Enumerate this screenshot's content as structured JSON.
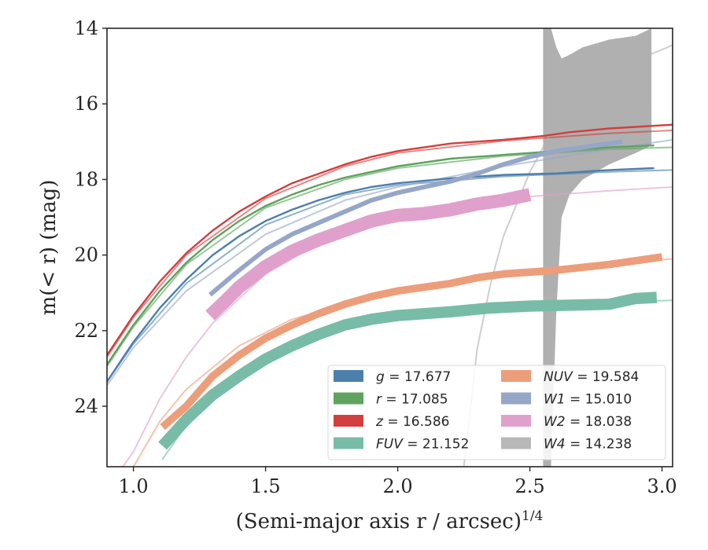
{
  "chart_data": {
    "type": "line",
    "xlabel": "(Semi-major axis r / arcsec)",
    "xlabel_sup": "1/4",
    "ylabel": "m(< r) (mag)",
    "xlim": [
      0.9,
      3.04
    ],
    "ylim": [
      25.6,
      14.0
    ],
    "y_inverted": true,
    "grid": false,
    "legend_placement": "lower-right",
    "x_ticks": [
      "1.0",
      "1.5",
      "2.0",
      "2.5",
      "3.0"
    ],
    "y_ticks": [
      "14",
      "16",
      "18",
      "20",
      "22",
      "24"
    ],
    "series": [
      {
        "name": "g = 17.677",
        "color": "#4c7fab",
        "data": [
          [
            0.9,
            23.35
          ],
          [
            1.0,
            22.3
          ],
          [
            1.1,
            21.4
          ],
          [
            1.2,
            20.65
          ],
          [
            1.3,
            20.0
          ],
          [
            1.4,
            19.5
          ],
          [
            1.5,
            19.1
          ],
          [
            1.6,
            18.8
          ],
          [
            1.7,
            18.55
          ],
          [
            1.8,
            18.35
          ],
          [
            1.9,
            18.2
          ],
          [
            2.0,
            18.1
          ],
          [
            2.2,
            17.97
          ],
          [
            2.4,
            17.88
          ],
          [
            2.6,
            17.84
          ],
          [
            2.8,
            17.75
          ],
          [
            2.97,
            17.7
          ]
        ],
        "model": [
          [
            0.9,
            23.35
          ],
          [
            1.0,
            22.35
          ],
          [
            1.2,
            20.75
          ],
          [
            1.5,
            19.2
          ],
          [
            1.8,
            18.4
          ],
          [
            2.0,
            18.15
          ],
          [
            2.4,
            17.92
          ],
          [
            2.8,
            17.8
          ],
          [
            3.04,
            17.75
          ]
        ]
      },
      {
        "name": "r = 17.085",
        "color": "#5ea35e",
        "data": [
          [
            0.9,
            22.9
          ],
          [
            1.0,
            21.85
          ],
          [
            1.1,
            20.95
          ],
          [
            1.2,
            20.2
          ],
          [
            1.3,
            19.6
          ],
          [
            1.4,
            19.1
          ],
          [
            1.5,
            18.7
          ],
          [
            1.6,
            18.4
          ],
          [
            1.7,
            18.15
          ],
          [
            1.8,
            17.95
          ],
          [
            1.9,
            17.8
          ],
          [
            2.0,
            17.65
          ],
          [
            2.2,
            17.45
          ],
          [
            2.4,
            17.35
          ],
          [
            2.6,
            17.25
          ],
          [
            2.8,
            17.15
          ],
          [
            2.97,
            17.1
          ]
        ],
        "model": [
          [
            0.9,
            22.95
          ],
          [
            1.0,
            21.9
          ],
          [
            1.2,
            20.25
          ],
          [
            1.5,
            18.75
          ],
          [
            1.8,
            18.0
          ],
          [
            2.0,
            17.7
          ],
          [
            2.4,
            17.38
          ],
          [
            2.8,
            17.2
          ],
          [
            3.04,
            17.15
          ]
        ]
      },
      {
        "name": "z = 16.586",
        "color": "#d13f3f",
        "data": [
          [
            0.9,
            22.65
          ],
          [
            1.0,
            21.6
          ],
          [
            1.1,
            20.7
          ],
          [
            1.2,
            19.95
          ],
          [
            1.3,
            19.35
          ],
          [
            1.4,
            18.85
          ],
          [
            1.5,
            18.45
          ],
          [
            1.6,
            18.1
          ],
          [
            1.7,
            17.85
          ],
          [
            1.8,
            17.6
          ],
          [
            1.9,
            17.4
          ],
          [
            2.0,
            17.25
          ],
          [
            2.2,
            17.05
          ],
          [
            2.4,
            16.95
          ],
          [
            2.55,
            16.85
          ],
          [
            2.65,
            16.75
          ],
          [
            2.8,
            16.65
          ],
          [
            3.04,
            16.55
          ]
        ],
        "model": [
          [
            0.9,
            22.7
          ],
          [
            1.0,
            21.65
          ],
          [
            1.2,
            20.0
          ],
          [
            1.5,
            18.5
          ],
          [
            1.8,
            17.65
          ],
          [
            2.0,
            17.3
          ],
          [
            2.4,
            16.98
          ],
          [
            2.8,
            16.78
          ],
          [
            3.04,
            16.7
          ]
        ]
      },
      {
        "name": "FUV = 21.152",
        "color": "#78bca8",
        "band_width": 0.3,
        "data": [
          [
            1.11,
            25.05
          ],
          [
            1.2,
            24.35
          ],
          [
            1.3,
            23.7
          ],
          [
            1.4,
            23.2
          ],
          [
            1.5,
            22.75
          ],
          [
            1.6,
            22.4
          ],
          [
            1.7,
            22.1
          ],
          [
            1.8,
            21.85
          ],
          [
            1.9,
            21.7
          ],
          [
            2.0,
            21.6
          ],
          [
            2.2,
            21.5
          ],
          [
            2.35,
            21.4
          ],
          [
            2.5,
            21.35
          ],
          [
            2.7,
            21.32
          ],
          [
            2.8,
            21.3
          ],
          [
            2.9,
            21.15
          ],
          [
            2.98,
            21.12
          ]
        ],
        "model": [
          [
            1.11,
            25.4
          ],
          [
            1.2,
            24.5
          ],
          [
            1.4,
            23.2
          ],
          [
            1.6,
            22.35
          ],
          [
            1.8,
            21.85
          ],
          [
            2.0,
            21.6
          ],
          [
            2.4,
            21.38
          ],
          [
            2.8,
            21.25
          ],
          [
            3.04,
            21.2
          ]
        ]
      },
      {
        "name": "NUV = 19.584",
        "color": "#ec9e7b",
        "band_width": 0.2,
        "data": [
          [
            1.11,
            24.55
          ],
          [
            1.2,
            24.0
          ],
          [
            1.3,
            23.2
          ],
          [
            1.4,
            22.65
          ],
          [
            1.5,
            22.2
          ],
          [
            1.6,
            21.85
          ],
          [
            1.7,
            21.55
          ],
          [
            1.8,
            21.3
          ],
          [
            1.9,
            21.1
          ],
          [
            2.0,
            20.95
          ],
          [
            2.2,
            20.75
          ],
          [
            2.3,
            20.6
          ],
          [
            2.4,
            20.5
          ],
          [
            2.6,
            20.4
          ],
          [
            2.8,
            20.25
          ],
          [
            3.0,
            20.05
          ]
        ],
        "model": [
          [
            1.0,
            25.6
          ],
          [
            1.1,
            24.4
          ],
          [
            1.2,
            23.55
          ],
          [
            1.4,
            22.4
          ],
          [
            1.6,
            21.7
          ],
          [
            1.8,
            21.3
          ],
          [
            2.0,
            20.95
          ],
          [
            2.4,
            20.55
          ],
          [
            2.8,
            20.25
          ],
          [
            3.04,
            20.1
          ]
        ]
      },
      {
        "name": "W1 = 15.010",
        "color": "#96a6c8",
        "band_width": 0.12,
        "data": [
          [
            1.29,
            21.05
          ],
          [
            1.4,
            20.4
          ],
          [
            1.5,
            19.85
          ],
          [
            1.6,
            19.45
          ],
          [
            1.7,
            19.15
          ],
          [
            1.8,
            18.85
          ],
          [
            1.9,
            18.55
          ],
          [
            2.0,
            18.35
          ],
          [
            2.1,
            18.2
          ],
          [
            2.2,
            18.05
          ],
          [
            2.3,
            17.85
          ],
          [
            2.4,
            17.6
          ],
          [
            2.5,
            17.4
          ],
          [
            2.6,
            17.25
          ],
          [
            2.7,
            17.15
          ],
          [
            2.8,
            17.05
          ],
          [
            2.85,
            17.0
          ]
        ],
        "model": [
          [
            0.9,
            23.45
          ],
          [
            1.0,
            22.45
          ],
          [
            1.2,
            20.95
          ],
          [
            1.5,
            19.45
          ],
          [
            1.8,
            18.55
          ],
          [
            2.0,
            18.2
          ],
          [
            2.4,
            17.65
          ],
          [
            2.8,
            17.2
          ],
          [
            3.04,
            16.95
          ]
        ]
      },
      {
        "name": "W2 = 18.038",
        "color": "#e0a0cc",
        "band_width": 0.35,
        "data": [
          [
            1.29,
            21.6
          ],
          [
            1.35,
            21.2
          ],
          [
            1.4,
            20.85
          ],
          [
            1.5,
            20.3
          ],
          [
            1.6,
            19.9
          ],
          [
            1.7,
            19.6
          ],
          [
            1.8,
            19.35
          ],
          [
            1.9,
            19.1
          ],
          [
            2.0,
            18.95
          ],
          [
            2.1,
            18.9
          ],
          [
            2.2,
            18.8
          ],
          [
            2.3,
            18.65
          ],
          [
            2.4,
            18.55
          ],
          [
            2.5,
            18.4
          ]
        ],
        "model": [
          [
            0.96,
            25.6
          ],
          [
            1.0,
            25.2
          ],
          [
            1.1,
            23.8
          ],
          [
            1.2,
            22.7
          ],
          [
            1.3,
            21.8
          ],
          [
            1.5,
            20.5
          ],
          [
            1.8,
            19.3
          ],
          [
            2.0,
            18.85
          ],
          [
            2.4,
            18.5
          ],
          [
            2.8,
            18.3
          ],
          [
            3.04,
            18.2
          ]
        ]
      },
      {
        "name": "W4 = 14.238",
        "color": "#b0b0b0",
        "band": [
          [
            2.55,
            25.6,
            14.0
          ],
          [
            2.58,
            25.6,
            14.0
          ],
          [
            2.6,
            21.5,
            14.5
          ],
          [
            2.62,
            19.0,
            14.8
          ],
          [
            2.65,
            18.4,
            14.7
          ],
          [
            2.7,
            18.0,
            14.5
          ],
          [
            2.8,
            17.6,
            14.3
          ],
          [
            2.9,
            17.3,
            14.2
          ],
          [
            2.96,
            17.1,
            14.0
          ]
        ],
        "band_edges": {
          "x_left": 2.53,
          "x_right": 2.58
        },
        "model": [
          [
            2.25,
            25.6
          ],
          [
            2.3,
            22.5
          ],
          [
            2.35,
            20.8
          ],
          [
            2.4,
            19.5
          ],
          [
            2.5,
            17.8
          ],
          [
            2.6,
            16.5
          ],
          [
            2.7,
            15.7
          ],
          [
            2.8,
            15.2
          ],
          [
            2.9,
            14.85
          ],
          [
            3.04,
            14.45
          ]
        ]
      }
    ],
    "legend": {
      "columns": [
        [
          {
            "label_var": "g",
            "label_val": " = 17.677",
            "color": "#4c7fab"
          },
          {
            "label_var": "r",
            "label_val": " = 17.085",
            "color": "#5ea35e"
          },
          {
            "label_var": "z",
            "label_val": " = 16.586",
            "color": "#d13f3f"
          },
          {
            "label_var": "FUV",
            "label_val": " = 21.152",
            "color": "#78bca8"
          }
        ],
        [
          {
            "label_var": "NUV",
            "label_val": " = 19.584",
            "color": "#ec9e7b"
          },
          {
            "label_var": "W1",
            "label_val": " = 15.010",
            "color": "#96a6c8"
          },
          {
            "label_var": "W2",
            "label_val": " = 18.038",
            "color": "#e0a0cc"
          },
          {
            "label_var": "W4",
            "label_val": " = 14.238",
            "color": "#b8b8b8"
          }
        ]
      ]
    }
  }
}
